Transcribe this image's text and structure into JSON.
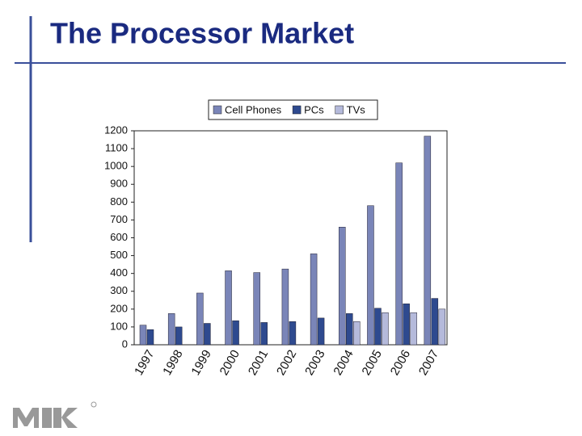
{
  "chart_data": {
    "type": "bar",
    "title": "The Processor Market",
    "categories": [
      "1997",
      "1998",
      "1999",
      "2000",
      "2001",
      "2002",
      "2003",
      "2004",
      "2005",
      "2006",
      "2007"
    ],
    "series": [
      {
        "name": "Cell Phones",
        "color": "#7a85b8",
        "values": [
          110,
          175,
          290,
          415,
          405,
          425,
          510,
          660,
          780,
          1020,
          1170
        ]
      },
      {
        "name": "PCs",
        "color": "#2e4a8f",
        "values": [
          85,
          100,
          120,
          135,
          125,
          130,
          150,
          175,
          205,
          230,
          260
        ]
      },
      {
        "name": "TVs",
        "color": "#b5badb",
        "values": [
          null,
          null,
          null,
          null,
          null,
          null,
          null,
          130,
          180,
          180,
          200
        ]
      }
    ],
    "ylim": [
      0,
      1200
    ],
    "yticks": [
      0,
      100,
      200,
      300,
      400,
      500,
      600,
      700,
      800,
      900,
      1000,
      1100,
      1200
    ],
    "grid": false,
    "legend": "top"
  }
}
